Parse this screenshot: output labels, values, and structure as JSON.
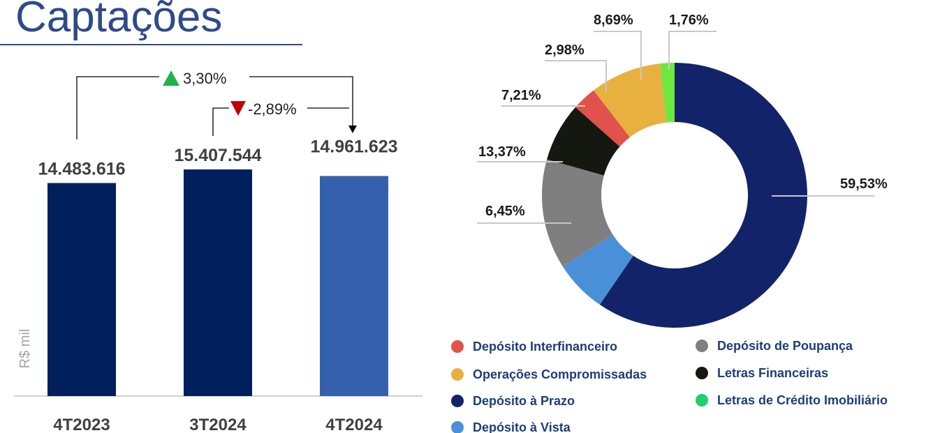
{
  "title": "Captações",
  "chart_data": [
    {
      "type": "bar",
      "categories": [
        "4T2023",
        "3T2024",
        "4T2024"
      ],
      "values": [
        14483616,
        15407544,
        14961623
      ],
      "value_labels": [
        "14.483.616",
        "15.407.544",
        "14.961.623"
      ],
      "colors": [
        "#001f5c",
        "#001f5c",
        "#3560ae"
      ],
      "ylabel": "R$ mil",
      "annotations": [
        "3,30%",
        "-2,89%"
      ]
    },
    {
      "type": "pie",
      "categories": [
        "Depósito à Prazo",
        "Depósito à Vista",
        "Depósito de Poupança",
        "Letras Financeiras",
        "Depósito Interfinanceiro",
        "Operações Compromissadas",
        "Letras de Crédito Imobiliário"
      ],
      "values": [
        59.53,
        6.45,
        13.37,
        7.21,
        2.98,
        8.69,
        1.76
      ],
      "value_labels": [
        "59,53%",
        "6,45%",
        "13,37%",
        "7,21%",
        "2,98%",
        "8,69%",
        "1,76%"
      ],
      "colors": [
        "#13236a",
        "#4a90d9",
        "#7f7f7f",
        "#141810",
        "#e0524b",
        "#e8b03e",
        "#6ee83e"
      ]
    }
  ]
}
